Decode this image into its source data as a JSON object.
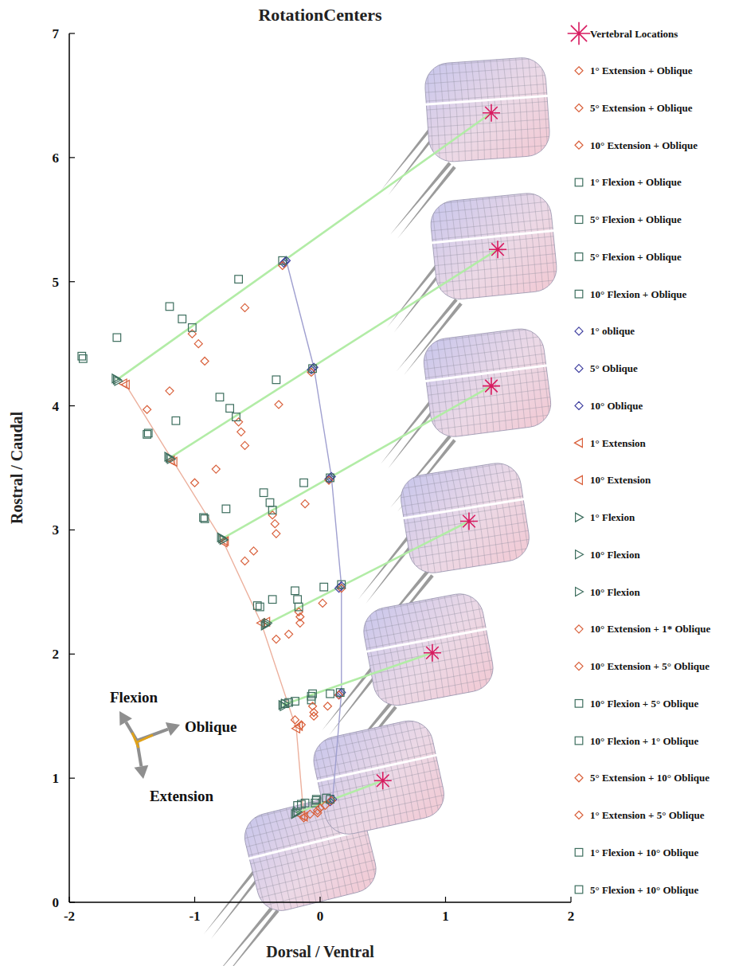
{
  "chart_data": {
    "type": "scatter",
    "title": "RotationCenters",
    "x_label": "Dorsal / Ventral",
    "y_label": "Rostral / Caudal",
    "xlim": [
      -2,
      2
    ],
    "ylim": [
      0,
      7
    ],
    "xticks": [
      -2,
      -1,
      0,
      1,
      2
    ],
    "yticks": [
      0,
      1,
      2,
      3,
      4,
      5,
      6,
      7
    ],
    "grid": false,
    "legend": "right",
    "annotations": [
      "Flexion",
      "Oblique",
      "Extension"
    ],
    "series": [
      {
        "name": "Vertebral Locations",
        "color": "#d81b60",
        "marker": "asterisk",
        "x": [
          0.5,
          0.895,
          1.187,
          1.365,
          1.416,
          1.365
        ],
        "values": [
          0.98,
          2.01,
          3.07,
          4.16,
          5.26,
          6.36
        ]
      },
      {
        "name": "1° Extension + Oblique",
        "color": "#d9603b",
        "marker": "diamond",
        "x": [
          -0.13,
          -0.15,
          -0.35,
          -0.6,
          -1.0,
          -1.38
        ],
        "values": [
          0.68,
          1.43,
          2.12,
          2.75,
          3.38,
          3.97
        ]
      },
      {
        "name": "5° Extension + Oblique",
        "color": "#d9603b",
        "marker": "diamond",
        "x": [
          -0.08,
          -0.2,
          -0.25,
          -0.53,
          -0.83,
          -1.2
        ],
        "values": [
          0.71,
          1.47,
          2.16,
          2.83,
          3.49,
          4.12
        ]
      },
      {
        "name": "10° Extension + Oblique",
        "color": "#d9603b",
        "marker": "diamond",
        "x": [
          -0.02,
          -0.05,
          -0.16,
          -0.38,
          -0.65,
          -1.02
        ],
        "values": [
          0.72,
          1.5,
          2.3,
          3.12,
          3.87,
          4.58
        ]
      },
      {
        "name": "1° Flexion + Oblique",
        "color": "#3d6e5e",
        "marker": "square",
        "x": [
          -0.18,
          -0.28,
          -0.5,
          -0.93,
          -1.38,
          -1.9
        ],
        "values": [
          0.78,
          1.6,
          2.39,
          3.1,
          3.77,
          4.4
        ]
      },
      {
        "name": "5° Flexion + Oblique",
        "color": "#3d6e5e",
        "marker": "square",
        "x": [
          -0.12,
          -0.2,
          -0.38,
          -0.75,
          -1.15,
          -1.62
        ],
        "values": [
          0.8,
          1.62,
          2.44,
          3.17,
          3.88,
          4.55
        ]
      },
      {
        "name": "5° Flexion + Oblique",
        "color": "#3d6e5e",
        "marker": "square",
        "x": [
          -0.04,
          -0.07,
          -0.2,
          -0.45,
          -0.8,
          -1.2
        ],
        "values": [
          0.8,
          1.66,
          2.51,
          3.3,
          4.07,
          4.8
        ]
      },
      {
        "name": "10° Flexion + Oblique",
        "color": "#3d6e5e",
        "marker": "square",
        "x": [
          -0.03,
          -0.07,
          -0.18,
          -0.4,
          -0.72,
          -1.1
        ],
        "values": [
          0.82,
          1.63,
          2.44,
          3.22,
          3.98,
          4.7
        ]
      },
      {
        "name": "1° oblique",
        "color": "#4040a0",
        "marker": "diamond",
        "line_style": "solid",
        "x": [
          0.1,
          0.17,
          0.17,
          0.09,
          -0.05,
          -0.27
        ],
        "values": [
          0.83,
          1.69,
          2.55,
          3.43,
          4.31,
          5.17
        ]
      },
      {
        "name": "5° Oblique",
        "color": "#4040a0",
        "marker": "diamond",
        "x": [
          0.09,
          0.16,
          0.16,
          0.08,
          -0.06,
          -0.28
        ],
        "values": [
          0.82,
          1.68,
          2.54,
          3.42,
          4.3,
          5.16
        ]
      },
      {
        "name": "10° Oblique",
        "color": "#4040a0",
        "marker": "diamond",
        "x": [
          0.08,
          0.15,
          0.15,
          0.07,
          -0.07,
          -0.29
        ],
        "values": [
          0.81,
          1.67,
          2.53,
          3.41,
          4.29,
          5.15
        ]
      },
      {
        "name": "1° Extension",
        "color": "#d9603b",
        "marker": "triangle-left",
        "line_style": "solid",
        "x": [
          -0.13,
          -0.19,
          -0.47,
          -0.77,
          -1.17,
          -1.55
        ],
        "values": [
          0.69,
          1.4,
          2.25,
          2.9,
          3.55,
          4.17
        ]
      },
      {
        "name": "10° Extension",
        "color": "#d9603b",
        "marker": "triangle-left",
        "x": [
          -0.15,
          -0.17,
          -0.43,
          -0.76,
          -1.19,
          -1.57
        ],
        "values": [
          0.7,
          1.42,
          2.26,
          2.91,
          3.56,
          4.18
        ]
      },
      {
        "name": "1° Flexion",
        "color": "#3d6e5e",
        "marker": "triangle-right",
        "x": [
          -0.18,
          -0.28,
          -0.42,
          -0.79,
          -1.21,
          -1.63
        ],
        "values": [
          0.73,
          1.6,
          2.25,
          2.94,
          3.59,
          4.22
        ]
      },
      {
        "name": "10° Flexion",
        "color": "#3d6e5e",
        "marker": "triangle-right",
        "line_style": "connector",
        "x": [
          -0.19,
          -0.3,
          -0.43,
          -0.78,
          -1.2,
          -1.62
        ],
        "values": [
          0.72,
          1.59,
          2.24,
          2.93,
          3.58,
          4.21
        ]
      },
      {
        "name": "10° Flexion",
        "color": "#3d6e5e",
        "marker": "triangle-right",
        "x": [
          -0.2,
          -0.29,
          -0.44,
          -0.77,
          -1.19,
          -1.61
        ],
        "values": [
          0.71,
          1.58,
          2.23,
          2.92,
          3.57,
          4.2
        ]
      },
      {
        "name": "10° Extension + 1* Oblique",
        "color": "#d9603b",
        "marker": "diamond",
        "x": [
          -0.02,
          -0.05,
          -0.16,
          -0.36,
          -0.63,
          -0.97
        ],
        "values": [
          0.74,
          1.53,
          2.25,
          3.05,
          3.79,
          4.5
        ]
      },
      {
        "name": "10° Extension + 5° Oblique",
        "color": "#d9603b",
        "marker": "diamond",
        "x": [
          0.0,
          -0.06,
          -0.17,
          -0.35,
          -0.6,
          -0.92
        ],
        "values": [
          0.76,
          1.58,
          2.34,
          2.97,
          3.68,
          4.36
        ]
      },
      {
        "name": "10° Flexion + 5° Oblique",
        "color": "#3d6e5e",
        "marker": "square",
        "x": [
          -0.03,
          -0.06,
          -0.17,
          -0.38,
          -0.67,
          -1.02
        ],
        "values": [
          0.83,
          1.68,
          2.38,
          3.16,
          3.91,
          4.63
        ]
      },
      {
        "name": "10° Flexion + 1° Oblique",
        "color": "#3d6e5e",
        "marker": "square",
        "x": [
          0.05,
          0.08,
          0.03,
          -0.13,
          -0.35,
          -0.65
        ],
        "values": [
          0.84,
          1.68,
          2.54,
          3.38,
          4.21,
          5.02
        ]
      },
      {
        "name": "5° Extension + 10° Oblique",
        "color": "#d9603b",
        "marker": "diamond",
        "x": [
          0.04,
          0.06,
          0.02,
          -0.12,
          -0.33,
          -0.6
        ],
        "values": [
          0.78,
          1.58,
          2.41,
          3.21,
          4.01,
          4.79
        ]
      },
      {
        "name": "1° Extension + 5° Oblique",
        "color": "#d9603b",
        "marker": "diamond",
        "x": [
          0.09,
          0.15,
          0.17,
          0.07,
          -0.07,
          -0.3
        ],
        "values": [
          0.82,
          1.67,
          2.53,
          3.4,
          4.27,
          5.13
        ]
      },
      {
        "name": "1° Flexion + 10° Oblique",
        "color": "#3d6e5e",
        "marker": "square",
        "x": [
          0.08,
          0.16,
          0.17,
          0.08,
          -0.06,
          -0.3
        ],
        "values": [
          0.83,
          1.69,
          2.56,
          3.42,
          4.3,
          5.17
        ]
      },
      {
        "name": "5° Flexion + 10° Oblique",
        "color": "#3d6e5e",
        "marker": "square",
        "x": [
          -0.15,
          -0.25,
          -0.48,
          -0.92,
          -1.37,
          -1.89
        ],
        "values": [
          0.79,
          1.61,
          2.38,
          3.09,
          3.78,
          4.38
        ]
      }
    ]
  }
}
